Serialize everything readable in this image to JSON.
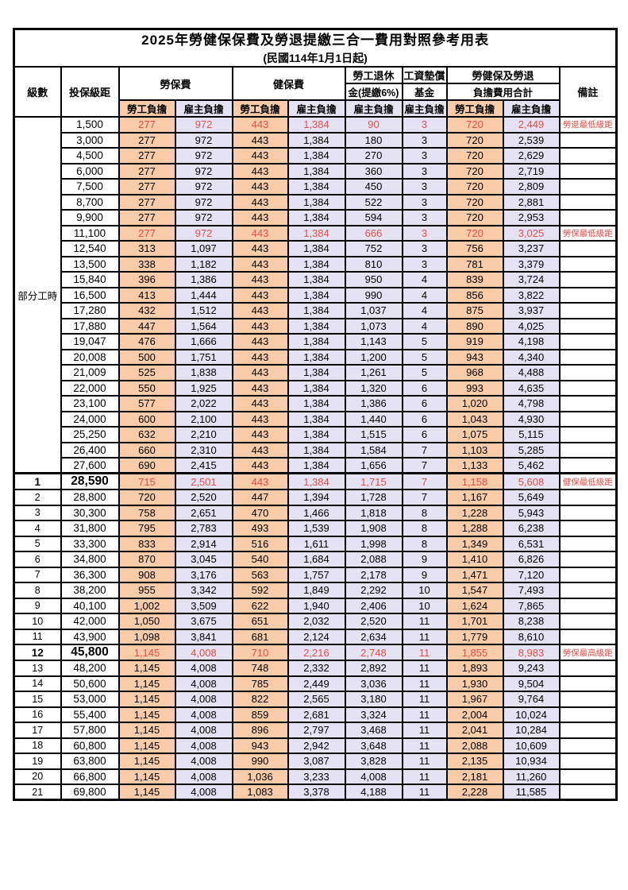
{
  "title": "2025年勞健保保費及勞退提繳三合一費用對照參考用表",
  "subtitle": "(民國114年1月1日起)",
  "colors": {
    "employee_col_bg": "#F8CCA8",
    "employer_col_bg": "#E5E3F3",
    "highlight_text": "#E84B44",
    "border": "#000000"
  },
  "table": {
    "header": {
      "level": "級數",
      "bracket": "投保級距",
      "labor_ins": "勞保費",
      "health_ins": "健保費",
      "pension_line1": "勞工退休",
      "pension_line2": "金(提繳6%)",
      "wage_fund_line1": "工資墊償",
      "wage_fund_line2": "基金",
      "total_line1": "勞健保及勞退",
      "total_line2": "負擔費用合計",
      "remarks": "備註",
      "employee": "勞工負擔",
      "employer": "雇主負擔"
    },
    "part_time_label": "部分工時",
    "part_time_span": 23,
    "rows": [
      {
        "level": "",
        "bracket": "1,500",
        "values": [
          "277",
          "972",
          "443",
          "1,384",
          "90",
          "3",
          "720",
          "2,449"
        ],
        "remark": "勞退最低級距",
        "red": true
      },
      {
        "level": "",
        "bracket": "3,000",
        "values": [
          "277",
          "972",
          "443",
          "1,384",
          "180",
          "3",
          "720",
          "2,539"
        ],
        "remark": ""
      },
      {
        "level": "",
        "bracket": "4,500",
        "values": [
          "277",
          "972",
          "443",
          "1,384",
          "270",
          "3",
          "720",
          "2,629"
        ],
        "remark": ""
      },
      {
        "level": "",
        "bracket": "6,000",
        "values": [
          "277",
          "972",
          "443",
          "1,384",
          "360",
          "3",
          "720",
          "2,719"
        ],
        "remark": ""
      },
      {
        "level": "",
        "bracket": "7,500",
        "values": [
          "277",
          "972",
          "443",
          "1,384",
          "450",
          "3",
          "720",
          "2,809"
        ],
        "remark": ""
      },
      {
        "level": "",
        "bracket": "8,700",
        "values": [
          "277",
          "972",
          "443",
          "1,384",
          "522",
          "3",
          "720",
          "2,881"
        ],
        "remark": ""
      },
      {
        "level": "",
        "bracket": "9,900",
        "values": [
          "277",
          "972",
          "443",
          "1,384",
          "594",
          "3",
          "720",
          "2,953"
        ],
        "remark": ""
      },
      {
        "level": "",
        "bracket": "11,100",
        "values": [
          "277",
          "972",
          "443",
          "1,384",
          "666",
          "3",
          "720",
          "3,025"
        ],
        "remark": "勞保最低級距",
        "red": true
      },
      {
        "level": "",
        "bracket": "12,540",
        "values": [
          "313",
          "1,097",
          "443",
          "1,384",
          "752",
          "3",
          "756",
          "3,237"
        ],
        "remark": ""
      },
      {
        "level": "",
        "bracket": "13,500",
        "values": [
          "338",
          "1,182",
          "443",
          "1,384",
          "810",
          "3",
          "781",
          "3,379"
        ],
        "remark": ""
      },
      {
        "level": "",
        "bracket": "15,840",
        "values": [
          "396",
          "1,386",
          "443",
          "1,384",
          "950",
          "4",
          "839",
          "3,724"
        ],
        "remark": ""
      },
      {
        "level": "",
        "bracket": "16,500",
        "values": [
          "413",
          "1,444",
          "443",
          "1,384",
          "990",
          "4",
          "856",
          "3,822"
        ],
        "remark": ""
      },
      {
        "level": "",
        "bracket": "17,280",
        "values": [
          "432",
          "1,512",
          "443",
          "1,384",
          "1,037",
          "4",
          "875",
          "3,937"
        ],
        "remark": ""
      },
      {
        "level": "",
        "bracket": "17,880",
        "values": [
          "447",
          "1,564",
          "443",
          "1,384",
          "1,073",
          "4",
          "890",
          "4,025"
        ],
        "remark": ""
      },
      {
        "level": "",
        "bracket": "19,047",
        "values": [
          "476",
          "1,666",
          "443",
          "1,384",
          "1,143",
          "5",
          "919",
          "4,198"
        ],
        "remark": ""
      },
      {
        "level": "",
        "bracket": "20,008",
        "values": [
          "500",
          "1,751",
          "443",
          "1,384",
          "1,200",
          "5",
          "943",
          "4,340"
        ],
        "remark": ""
      },
      {
        "level": "",
        "bracket": "21,009",
        "values": [
          "525",
          "1,838",
          "443",
          "1,384",
          "1,261",
          "5",
          "968",
          "4,488"
        ],
        "remark": ""
      },
      {
        "level": "",
        "bracket": "22,000",
        "values": [
          "550",
          "1,925",
          "443",
          "1,384",
          "1,320",
          "6",
          "993",
          "4,635"
        ],
        "remark": ""
      },
      {
        "level": "",
        "bracket": "23,100",
        "values": [
          "577",
          "2,022",
          "443",
          "1,384",
          "1,386",
          "6",
          "1,020",
          "4,798"
        ],
        "remark": ""
      },
      {
        "level": "",
        "bracket": "24,000",
        "values": [
          "600",
          "2,100",
          "443",
          "1,384",
          "1,440",
          "6",
          "1,043",
          "4,930"
        ],
        "remark": ""
      },
      {
        "level": "",
        "bracket": "25,250",
        "values": [
          "632",
          "2,210",
          "443",
          "1,384",
          "1,515",
          "6",
          "1,075",
          "5,115"
        ],
        "remark": ""
      },
      {
        "level": "",
        "bracket": "26,400",
        "values": [
          "660",
          "2,310",
          "443",
          "1,384",
          "1,584",
          "7",
          "1,103",
          "5,285"
        ],
        "remark": ""
      },
      {
        "level": "",
        "bracket": "27,600",
        "values": [
          "690",
          "2,415",
          "443",
          "1,384",
          "1,656",
          "7",
          "1,133",
          "5,462"
        ],
        "remark": ""
      },
      {
        "level": "1",
        "bracket": "28,590",
        "values": [
          "715",
          "2,501",
          "443",
          "1,384",
          "1,715",
          "7",
          "1,158",
          "5,608"
        ],
        "remark": "健保最低級距",
        "red": true,
        "big": true
      },
      {
        "level": "2",
        "bracket": "28,800",
        "values": [
          "720",
          "2,520",
          "447",
          "1,394",
          "1,728",
          "7",
          "1,167",
          "5,649"
        ],
        "remark": ""
      },
      {
        "level": "3",
        "bracket": "30,300",
        "values": [
          "758",
          "2,651",
          "470",
          "1,466",
          "1,818",
          "8",
          "1,228",
          "5,943"
        ],
        "remark": ""
      },
      {
        "level": "4",
        "bracket": "31,800",
        "values": [
          "795",
          "2,783",
          "493",
          "1,539",
          "1,908",
          "8",
          "1,288",
          "6,238"
        ],
        "remark": ""
      },
      {
        "level": "5",
        "bracket": "33,300",
        "values": [
          "833",
          "2,914",
          "516",
          "1,611",
          "1,998",
          "8",
          "1,349",
          "6,531"
        ],
        "remark": ""
      },
      {
        "level": "6",
        "bracket": "34,800",
        "values": [
          "870",
          "3,045",
          "540",
          "1,684",
          "2,088",
          "9",
          "1,410",
          "6,826"
        ],
        "remark": ""
      },
      {
        "level": "7",
        "bracket": "36,300",
        "values": [
          "908",
          "3,176",
          "563",
          "1,757",
          "2,178",
          "9",
          "1,471",
          "7,120"
        ],
        "remark": ""
      },
      {
        "level": "8",
        "bracket": "38,200",
        "values": [
          "955",
          "3,342",
          "592",
          "1,849",
          "2,292",
          "10",
          "1,547",
          "7,493"
        ],
        "remark": ""
      },
      {
        "level": "9",
        "bracket": "40,100",
        "values": [
          "1,002",
          "3,509",
          "622",
          "1,940",
          "2,406",
          "10",
          "1,624",
          "7,865"
        ],
        "remark": ""
      },
      {
        "level": "10",
        "bracket": "42,000",
        "values": [
          "1,050",
          "3,675",
          "651",
          "2,032",
          "2,520",
          "11",
          "1,701",
          "8,238"
        ],
        "remark": ""
      },
      {
        "level": "11",
        "bracket": "43,900",
        "values": [
          "1,098",
          "3,841",
          "681",
          "2,124",
          "2,634",
          "11",
          "1,779",
          "8,610"
        ],
        "remark": ""
      },
      {
        "level": "12",
        "bracket": "45,800",
        "values": [
          "1,145",
          "4,008",
          "710",
          "2,216",
          "2,748",
          "11",
          "1,855",
          "8,983"
        ],
        "remark": "勞保最高級距",
        "red": true,
        "big": true
      },
      {
        "level": "13",
        "bracket": "48,200",
        "values": [
          "1,145",
          "4,008",
          "748",
          "2,332",
          "2,892",
          "11",
          "1,893",
          "9,243"
        ],
        "remark": ""
      },
      {
        "level": "14",
        "bracket": "50,600",
        "values": [
          "1,145",
          "4,008",
          "785",
          "2,449",
          "3,036",
          "11",
          "1,930",
          "9,504"
        ],
        "remark": ""
      },
      {
        "level": "15",
        "bracket": "53,000",
        "values": [
          "1,145",
          "4,008",
          "822",
          "2,565",
          "3,180",
          "11",
          "1,967",
          "9,764"
        ],
        "remark": ""
      },
      {
        "level": "16",
        "bracket": "55,400",
        "values": [
          "1,145",
          "4,008",
          "859",
          "2,681",
          "3,324",
          "11",
          "2,004",
          "10,024"
        ],
        "remark": ""
      },
      {
        "level": "17",
        "bracket": "57,800",
        "values": [
          "1,145",
          "4,008",
          "896",
          "2,797",
          "3,468",
          "11",
          "2,041",
          "10,284"
        ],
        "remark": ""
      },
      {
        "level": "18",
        "bracket": "60,800",
        "values": [
          "1,145",
          "4,008",
          "943",
          "2,942",
          "3,648",
          "11",
          "2,088",
          "10,609"
        ],
        "remark": ""
      },
      {
        "level": "19",
        "bracket": "63,800",
        "values": [
          "1,145",
          "4,008",
          "990",
          "3,087",
          "3,828",
          "11",
          "2,135",
          "10,934"
        ],
        "remark": ""
      },
      {
        "level": "20",
        "bracket": "66,800",
        "values": [
          "1,145",
          "4,008",
          "1,036",
          "3,233",
          "4,008",
          "11",
          "2,181",
          "11,260"
        ],
        "remark": ""
      },
      {
        "level": "21",
        "bracket": "69,800",
        "values": [
          "1,145",
          "4,008",
          "1,083",
          "3,378",
          "4,188",
          "11",
          "2,228",
          "11,585"
        ],
        "remark": ""
      }
    ]
  }
}
